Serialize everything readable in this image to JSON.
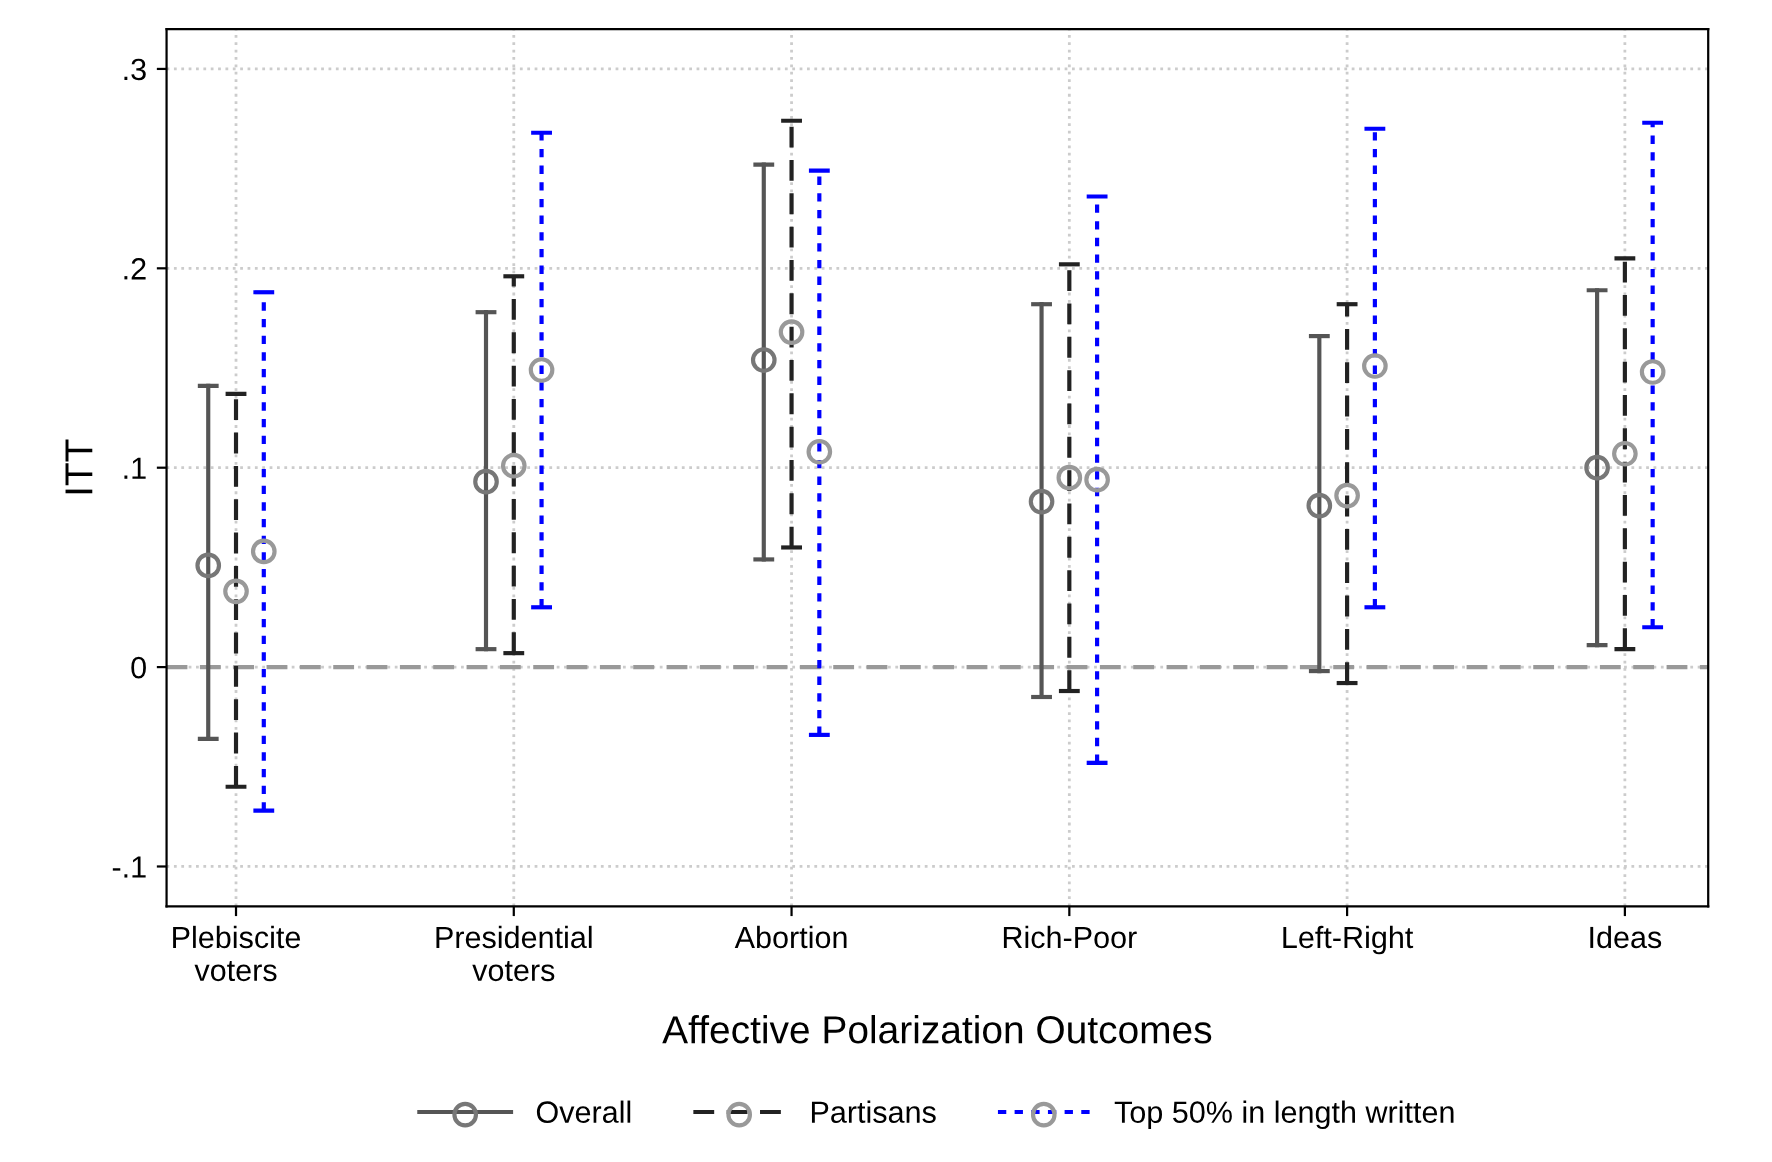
{
  "chart_data": {
    "type": "scatter",
    "xlabel": "Affective Polarization Outcomes",
    "ylabel": "ITT",
    "categories": [
      "Plebiscite\nvoters",
      "Presidential\nvoters",
      "Abortion",
      "Rich-Poor",
      "Left-Right",
      "Ideas"
    ],
    "series": [
      {
        "name": "Overall",
        "color": "#555555",
        "line_style": "solid",
        "colors": [
          "#777777",
          "#777777",
          "#777777",
          "#777777",
          "#777777",
          "#777777"
        ],
        "values": [
          0.051,
          0.093,
          0.154,
          0.083,
          0.081,
          0.1
        ],
        "errors": [
          [
            -0.036,
            0.141
          ],
          [
            0.009,
            0.178
          ],
          [
            0.054,
            0.252
          ],
          [
            -0.015,
            0.182
          ],
          [
            -0.002,
            0.166
          ],
          [
            0.011,
            0.189
          ]
        ]
      },
      {
        "name": "Partisans",
        "color": "#222222",
        "line_style": "dashed",
        "colors": [
          "#999999",
          "#999999",
          "#999999",
          "#999999",
          "#999999",
          "#999999"
        ],
        "values": [
          0.038,
          0.101,
          0.168,
          0.095,
          0.086,
          0.107
        ],
        "errors": [
          [
            -0.06,
            0.137
          ],
          [
            0.007,
            0.196
          ],
          [
            0.06,
            0.274
          ],
          [
            -0.012,
            0.202
          ],
          [
            -0.008,
            0.182
          ],
          [
            0.009,
            0.205
          ]
        ]
      },
      {
        "name": "Top 50% in length written",
        "color": "#0000ff",
        "line_style": "dotted",
        "colors": [
          "#999999",
          "#999999",
          "#999999",
          "#999999",
          "#999999",
          "#999999"
        ],
        "values": [
          0.058,
          0.149,
          0.108,
          0.094,
          0.151,
          0.148
        ],
        "errors": [
          [
            -0.072,
            0.188
          ],
          [
            0.03,
            0.268
          ],
          [
            -0.034,
            0.249
          ],
          [
            -0.048,
            0.236
          ],
          [
            0.03,
            0.27
          ],
          [
            0.02,
            0.273
          ]
        ]
      }
    ],
    "marker": "circle",
    "ylim": [
      -0.12,
      0.32
    ],
    "yticks": [
      {
        "value": -0.1,
        "label": "-.1"
      },
      {
        "value": 0,
        "label": "0"
      },
      {
        "value": 0.1,
        "label": ".1"
      },
      {
        "value": 0.2,
        "label": ".2"
      },
      {
        "value": 0.3,
        "label": ".3"
      }
    ],
    "ref_lines": [
      {
        "axis": "y",
        "value": 0,
        "color": "#999999",
        "line_style": "dashed"
      }
    ],
    "grid": true,
    "legend": "bottom"
  }
}
